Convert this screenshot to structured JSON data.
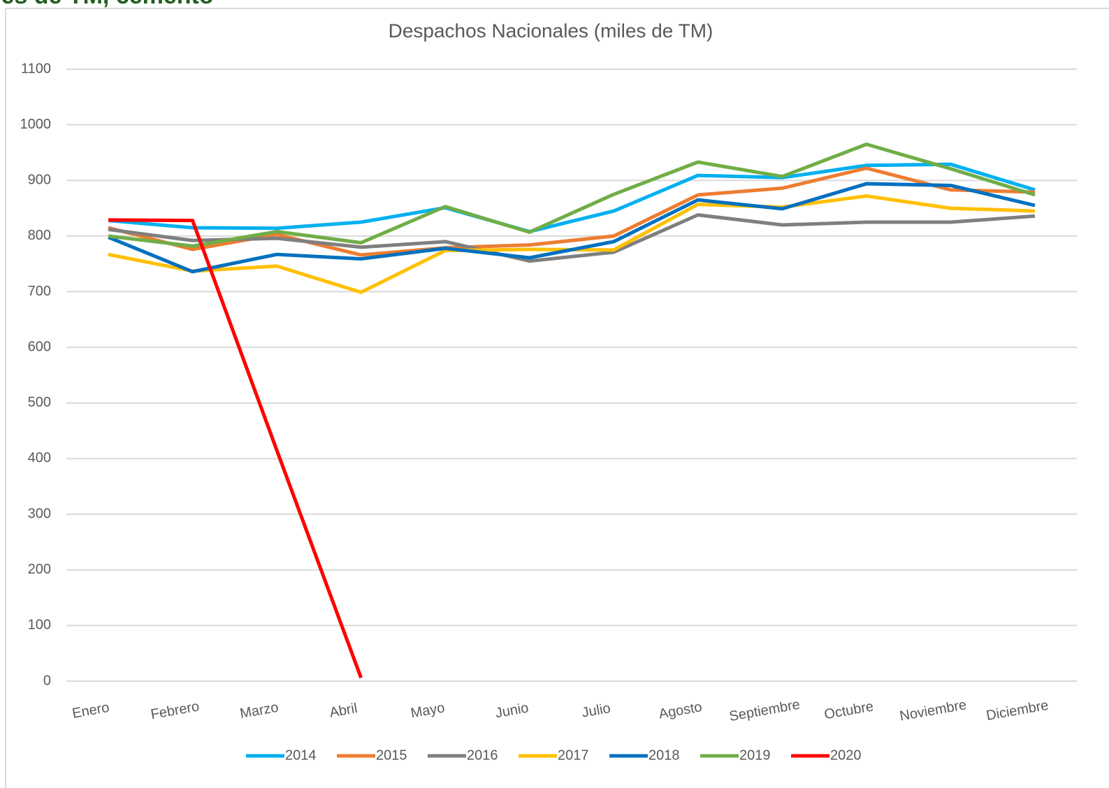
{
  "slide_title": "les de TM, cemento",
  "chart_data": {
    "type": "line",
    "title": "Despachos Nacionales (miles de TM)",
    "categories": [
      "Enero",
      "Febrero",
      "Marzo",
      "Abril",
      "Mayo",
      "Junio",
      "Julio",
      "Agosto",
      "Septiembre",
      "Octubre",
      "Noviembre",
      "Diciembre"
    ],
    "series": [
      {
        "name": "2014",
        "color": "#00b0f0",
        "values": [
          828,
          815,
          814,
          825,
          851,
          808,
          845,
          909,
          905,
          927,
          929,
          883
        ]
      },
      {
        "name": "2015",
        "color": "#ed7d31",
        "values": [
          815,
          776,
          803,
          766,
          779,
          784,
          800,
          874,
          886,
          922,
          883,
          879
        ]
      },
      {
        "name": "2016",
        "color": "#7f7f7f",
        "values": [
          812,
          792,
          796,
          780,
          790,
          755,
          771,
          838,
          820,
          825,
          825,
          836
        ]
      },
      {
        "name": "2017",
        "color": "#ffc000",
        "values": [
          767,
          737,
          746,
          699,
          774,
          776,
          775,
          857,
          852,
          872,
          850,
          845
        ]
      },
      {
        "name": "2018",
        "color": "#0070c0",
        "values": [
          798,
          736,
          767,
          759,
          778,
          761,
          790,
          865,
          849,
          894,
          891,
          855
        ]
      },
      {
        "name": "2019",
        "color": "#70ad47",
        "values": [
          800,
          782,
          808,
          788,
          853,
          807,
          875,
          933,
          907,
          965,
          921,
          874
        ]
      },
      {
        "name": "2020",
        "color": "#ff0000",
        "values": [
          829,
          828,
          415,
          6,
          null,
          null,
          null,
          null,
          null,
          null,
          null,
          null
        ]
      }
    ],
    "ylim": [
      0,
      1100
    ],
    "yticks": [
      0,
      100,
      200,
      300,
      400,
      500,
      600,
      700,
      800,
      900,
      1000,
      1100
    ],
    "grid": true,
    "legend": "bottom"
  }
}
